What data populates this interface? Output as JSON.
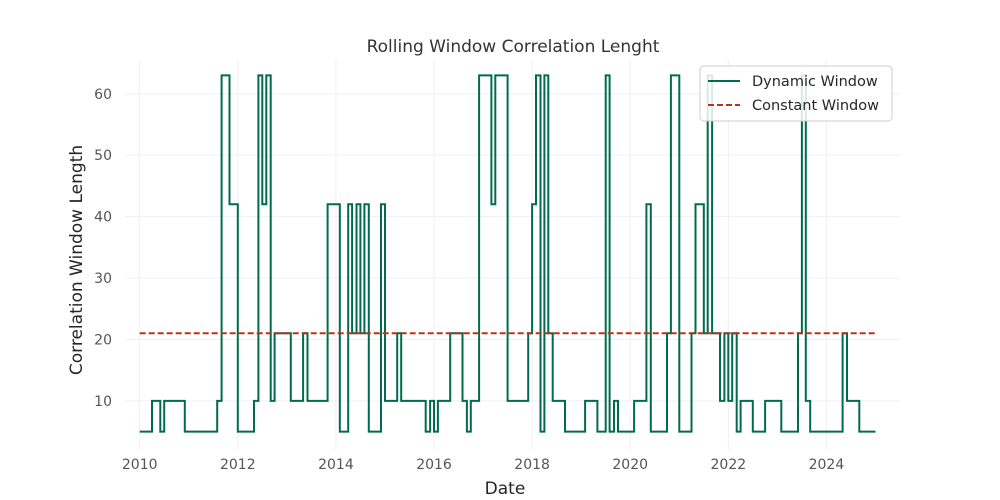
{
  "chart_data": {
    "type": "line",
    "title": "Rolling Window Correlation Lenght",
    "xlabel": "Date",
    "ylabel": "Correlation Window Length",
    "xlim": [
      2009.7,
      2025.5
    ],
    "ylim": [
      2.0,
      65.5
    ],
    "x_ticks": [
      2010,
      2012,
      2014,
      2016,
      2018,
      2020,
      2022,
      2024
    ],
    "y_ticks": [
      10,
      20,
      30,
      40,
      50,
      60
    ],
    "grid": true,
    "legend": "top-right",
    "series": [
      {
        "name": "Dynamic Window",
        "style": "steps",
        "color": "#006b4d",
        "points": [
          [
            2010.0,
            5
          ],
          [
            2010.25,
            5
          ],
          [
            2010.25,
            10
          ],
          [
            2010.42,
            10
          ],
          [
            2010.42,
            5
          ],
          [
            2010.5,
            5
          ],
          [
            2010.5,
            10
          ],
          [
            2010.92,
            10
          ],
          [
            2010.92,
            5
          ],
          [
            2011.58,
            5
          ],
          [
            2011.58,
            10
          ],
          [
            2011.67,
            10
          ],
          [
            2011.67,
            63
          ],
          [
            2011.83,
            63
          ],
          [
            2011.83,
            42
          ],
          [
            2012.0,
            42
          ],
          [
            2012.0,
            5
          ],
          [
            2012.33,
            5
          ],
          [
            2012.33,
            10
          ],
          [
            2012.42,
            10
          ],
          [
            2012.42,
            63
          ],
          [
            2012.5,
            63
          ],
          [
            2012.5,
            42
          ],
          [
            2012.58,
            42
          ],
          [
            2012.58,
            63
          ],
          [
            2012.67,
            63
          ],
          [
            2012.67,
            10
          ],
          [
            2012.75,
            10
          ],
          [
            2012.75,
            21
          ],
          [
            2013.08,
            21
          ],
          [
            2013.08,
            10
          ],
          [
            2013.33,
            10
          ],
          [
            2013.33,
            21
          ],
          [
            2013.42,
            21
          ],
          [
            2013.42,
            10
          ],
          [
            2013.83,
            10
          ],
          [
            2013.83,
            42
          ],
          [
            2014.08,
            42
          ],
          [
            2014.08,
            5
          ],
          [
            2014.25,
            5
          ],
          [
            2014.25,
            42
          ],
          [
            2014.33,
            42
          ],
          [
            2014.33,
            21
          ],
          [
            2014.42,
            21
          ],
          [
            2014.42,
            42
          ],
          [
            2014.5,
            42
          ],
          [
            2014.5,
            21
          ],
          [
            2014.58,
            21
          ],
          [
            2014.58,
            42
          ],
          [
            2014.67,
            42
          ],
          [
            2014.67,
            5
          ],
          [
            2014.92,
            5
          ],
          [
            2014.92,
            42
          ],
          [
            2015.0,
            42
          ],
          [
            2015.0,
            10
          ],
          [
            2015.25,
            10
          ],
          [
            2015.25,
            21
          ],
          [
            2015.33,
            21
          ],
          [
            2015.33,
            10
          ],
          [
            2015.83,
            10
          ],
          [
            2015.83,
            5
          ],
          [
            2015.92,
            5
          ],
          [
            2015.92,
            10
          ],
          [
            2016.0,
            10
          ],
          [
            2016.0,
            5
          ],
          [
            2016.08,
            5
          ],
          [
            2016.08,
            10
          ],
          [
            2016.33,
            10
          ],
          [
            2016.33,
            21
          ],
          [
            2016.58,
            21
          ],
          [
            2016.58,
            10
          ],
          [
            2016.67,
            10
          ],
          [
            2016.67,
            5
          ],
          [
            2016.75,
            5
          ],
          [
            2016.75,
            10
          ],
          [
            2016.92,
            10
          ],
          [
            2016.92,
            63
          ],
          [
            2017.17,
            63
          ],
          [
            2017.17,
            42
          ],
          [
            2017.25,
            42
          ],
          [
            2017.25,
            63
          ],
          [
            2017.5,
            63
          ],
          [
            2017.5,
            10
          ],
          [
            2017.92,
            10
          ],
          [
            2017.92,
            21
          ],
          [
            2018.0,
            21
          ],
          [
            2018.0,
            42
          ],
          [
            2018.08,
            42
          ],
          [
            2018.08,
            63
          ],
          [
            2018.17,
            63
          ],
          [
            2018.17,
            5
          ],
          [
            2018.25,
            5
          ],
          [
            2018.25,
            63
          ],
          [
            2018.33,
            63
          ],
          [
            2018.33,
            21
          ],
          [
            2018.42,
            21
          ],
          [
            2018.42,
            10
          ],
          [
            2018.67,
            10
          ],
          [
            2018.67,
            5
          ],
          [
            2019.08,
            5
          ],
          [
            2019.08,
            10
          ],
          [
            2019.33,
            10
          ],
          [
            2019.33,
            5
          ],
          [
            2019.5,
            5
          ],
          [
            2019.5,
            63
          ],
          [
            2019.58,
            63
          ],
          [
            2019.58,
            5
          ],
          [
            2019.67,
            5
          ],
          [
            2019.67,
            10
          ],
          [
            2019.75,
            10
          ],
          [
            2019.75,
            5
          ],
          [
            2020.08,
            5
          ],
          [
            2020.08,
            10
          ],
          [
            2020.33,
            10
          ],
          [
            2020.33,
            42
          ],
          [
            2020.42,
            42
          ],
          [
            2020.42,
            5
          ],
          [
            2020.75,
            5
          ],
          [
            2020.75,
            21
          ],
          [
            2020.83,
            21
          ],
          [
            2020.83,
            63
          ],
          [
            2021.0,
            63
          ],
          [
            2021.0,
            5
          ],
          [
            2021.25,
            5
          ],
          [
            2021.25,
            21
          ],
          [
            2021.33,
            21
          ],
          [
            2021.33,
            42
          ],
          [
            2021.5,
            42
          ],
          [
            2021.5,
            21
          ],
          [
            2021.58,
            21
          ],
          [
            2021.58,
            63
          ],
          [
            2021.67,
            63
          ],
          [
            2021.67,
            21
          ],
          [
            2021.83,
            21
          ],
          [
            2021.83,
            10
          ],
          [
            2021.92,
            10
          ],
          [
            2021.92,
            21
          ],
          [
            2022.0,
            21
          ],
          [
            2022.0,
            10
          ],
          [
            2022.08,
            10
          ],
          [
            2022.08,
            21
          ],
          [
            2022.17,
            21
          ],
          [
            2022.17,
            5
          ],
          [
            2022.25,
            5
          ],
          [
            2022.25,
            10
          ],
          [
            2022.5,
            10
          ],
          [
            2022.5,
            5
          ],
          [
            2022.75,
            5
          ],
          [
            2022.75,
            10
          ],
          [
            2023.08,
            10
          ],
          [
            2023.08,
            5
          ],
          [
            2023.42,
            5
          ],
          [
            2023.42,
            21
          ],
          [
            2023.5,
            21
          ],
          [
            2023.5,
            63
          ],
          [
            2023.58,
            63
          ],
          [
            2023.58,
            10
          ],
          [
            2023.67,
            10
          ],
          [
            2023.67,
            5
          ],
          [
            2024.33,
            5
          ],
          [
            2024.33,
            21
          ],
          [
            2024.42,
            21
          ],
          [
            2024.42,
            10
          ],
          [
            2024.67,
            10
          ],
          [
            2024.67,
            5
          ],
          [
            2025.0,
            5
          ]
        ]
      },
      {
        "name": "Constant Window",
        "style": "dashed",
        "color": "#b8331c",
        "points": [
          [
            2010.0,
            21
          ],
          [
            2025.0,
            21
          ]
        ]
      }
    ]
  }
}
